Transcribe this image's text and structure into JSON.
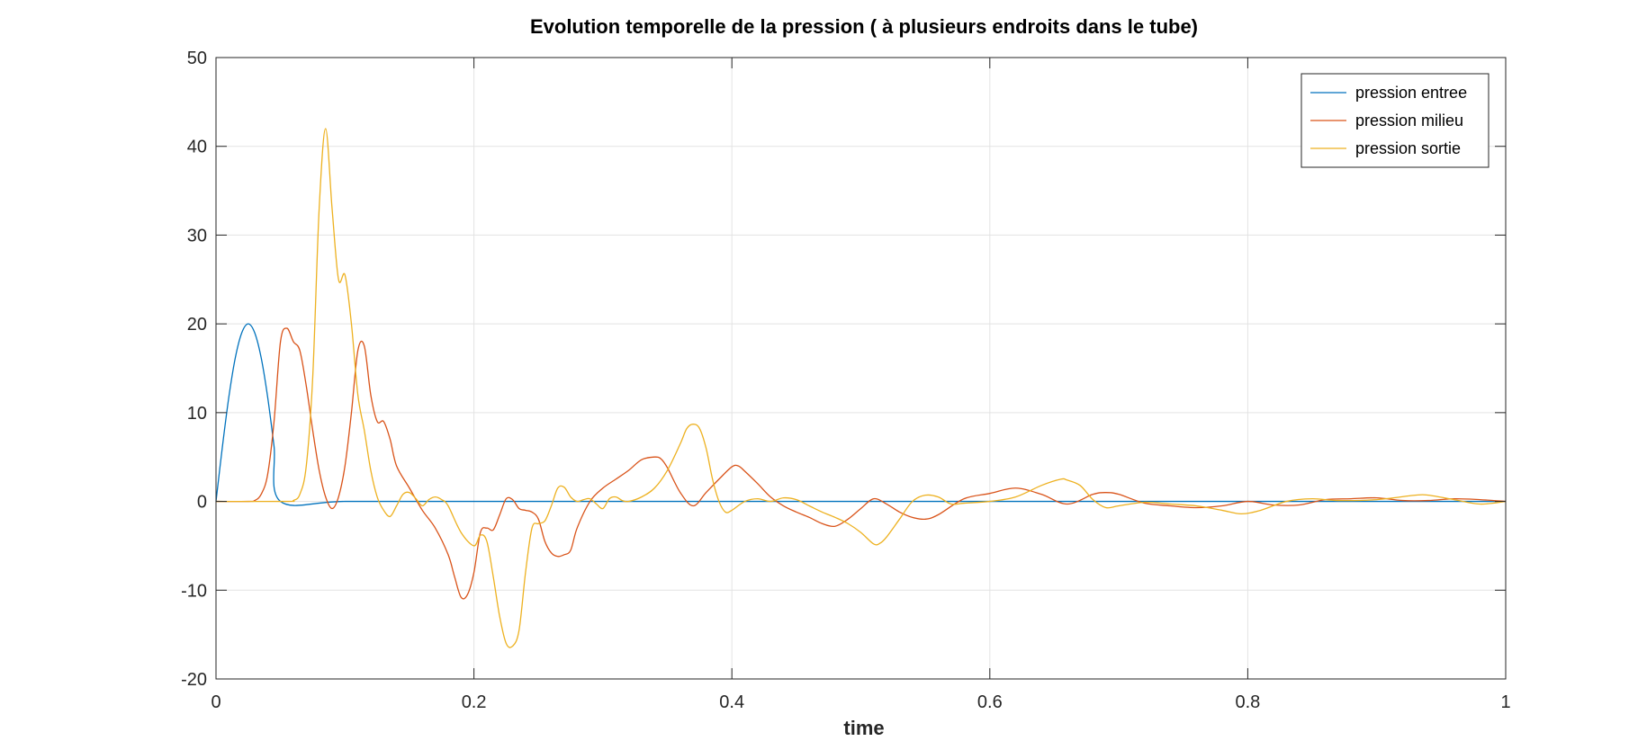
{
  "chart_data": {
    "type": "line",
    "title": "Evolution temporelle de la pression ( à plusieurs endroits dans le tube)",
    "xlabel": "time",
    "ylabel": "",
    "xlim": [
      0,
      1
    ],
    "ylim": [
      -20,
      50
    ],
    "xticks": [
      0,
      0.2,
      0.4,
      0.6,
      0.8,
      1
    ],
    "xtick_labels": [
      "0",
      "0.2",
      "0.4",
      "0.6",
      "0.8",
      "1"
    ],
    "yticks": [
      -20,
      -10,
      0,
      10,
      20,
      30,
      40,
      50
    ],
    "ytick_labels": [
      "-20",
      "-10",
      "0",
      "10",
      "20",
      "30",
      "40",
      "50"
    ],
    "grid": true,
    "legend_position": "top-right",
    "series": [
      {
        "name": "pression entree",
        "color": "#0072BD",
        "x": [
          0,
          0.005,
          0.01,
          0.015,
          0.02,
          0.025,
          0.03,
          0.035,
          0.04,
          0.045,
          0.05,
          0.1,
          0.2,
          0.4,
          0.6,
          0.8,
          1.0
        ],
        "y": [
          0,
          6.2,
          11.8,
          16.2,
          19.0,
          20.0,
          19.0,
          16.2,
          11.8,
          6.2,
          0,
          0,
          0,
          0,
          0,
          0,
          0
        ]
      },
      {
        "name": "pression milieu",
        "color": "#D95319",
        "x": [
          0,
          0.025,
          0.03,
          0.035,
          0.04,
          0.045,
          0.05,
          0.055,
          0.06,
          0.065,
          0.07,
          0.075,
          0.08,
          0.085,
          0.09,
          0.095,
          0.1,
          0.105,
          0.11,
          0.115,
          0.12,
          0.125,
          0.13,
          0.135,
          0.14,
          0.15,
          0.16,
          0.17,
          0.18,
          0.185,
          0.19,
          0.195,
          0.2,
          0.205,
          0.21,
          0.215,
          0.22,
          0.225,
          0.23,
          0.235,
          0.24,
          0.245,
          0.25,
          0.255,
          0.26,
          0.265,
          0.27,
          0.275,
          0.28,
          0.29,
          0.3,
          0.31,
          0.32,
          0.33,
          0.34,
          0.345,
          0.35,
          0.36,
          0.37,
          0.38,
          0.39,
          0.4,
          0.405,
          0.41,
          0.42,
          0.43,
          0.44,
          0.45,
          0.46,
          0.47,
          0.48,
          0.49,
          0.5,
          0.51,
          0.52,
          0.53,
          0.54,
          0.55,
          0.56,
          0.58,
          0.6,
          0.62,
          0.64,
          0.66,
          0.68,
          0.69,
          0.7,
          0.72,
          0.74,
          0.76,
          0.78,
          0.8,
          0.82,
          0.84,
          0.86,
          0.88,
          0.9,
          0.92,
          0.94,
          0.96,
          0.98,
          1.0
        ],
        "y": [
          0,
          0,
          0.1,
          0.8,
          3.0,
          9.0,
          18.0,
          19.5,
          18.0,
          17.0,
          13.0,
          8.0,
          3.5,
          0.5,
          -0.8,
          0.5,
          4.0,
          10.0,
          17.0,
          17.5,
          12.0,
          9.0,
          9.0,
          7.0,
          4.0,
          1.5,
          -1.0,
          -3.0,
          -6.0,
          -8.5,
          -10.8,
          -10.5,
          -8.0,
          -3.5,
          -3.0,
          -3.2,
          -1.5,
          0.3,
          0.2,
          -0.8,
          -1.0,
          -1.2,
          -2.0,
          -4.5,
          -5.8,
          -6.2,
          -6.0,
          -5.5,
          -3.0,
          0,
          1.5,
          2.5,
          3.5,
          4.7,
          5.0,
          4.8,
          3.8,
          1.0,
          -0.5,
          1.0,
          2.5,
          3.9,
          4.0,
          3.4,
          2.0,
          0.5,
          -0.5,
          -1.2,
          -1.8,
          -2.5,
          -2.8,
          -2.0,
          -0.8,
          0.3,
          -0.3,
          -1.2,
          -1.8,
          -2.0,
          -1.5,
          0.3,
          0.9,
          1.5,
          0.8,
          -0.3,
          0.8,
          1.0,
          0.8,
          -0.2,
          -0.5,
          -0.7,
          -0.5,
          0,
          -0.4,
          -0.4,
          0.2,
          0.3,
          0.4,
          0.1,
          0.1,
          0.3,
          0.2,
          0
        ]
      },
      {
        "name": "pression sortie",
        "color": "#EDB120",
        "x": [
          0,
          0.055,
          0.06,
          0.065,
          0.07,
          0.075,
          0.08,
          0.085,
          0.09,
          0.095,
          0.1,
          0.105,
          0.11,
          0.115,
          0.12,
          0.125,
          0.13,
          0.135,
          0.14,
          0.145,
          0.15,
          0.155,
          0.16,
          0.165,
          0.17,
          0.175,
          0.18,
          0.19,
          0.2,
          0.205,
          0.21,
          0.215,
          0.22,
          0.225,
          0.23,
          0.235,
          0.24,
          0.245,
          0.25,
          0.255,
          0.26,
          0.265,
          0.27,
          0.275,
          0.28,
          0.285,
          0.29,
          0.295,
          0.3,
          0.305,
          0.31,
          0.315,
          0.32,
          0.33,
          0.34,
          0.35,
          0.36,
          0.365,
          0.37,
          0.375,
          0.38,
          0.385,
          0.39,
          0.395,
          0.4,
          0.41,
          0.42,
          0.43,
          0.44,
          0.45,
          0.46,
          0.47,
          0.48,
          0.49,
          0.5,
          0.51,
          0.515,
          0.52,
          0.53,
          0.54,
          0.55,
          0.56,
          0.57,
          0.58,
          0.6,
          0.62,
          0.64,
          0.655,
          0.66,
          0.67,
          0.68,
          0.69,
          0.7,
          0.72,
          0.74,
          0.76,
          0.78,
          0.795,
          0.81,
          0.83,
          0.85,
          0.87,
          0.9,
          0.93,
          0.94,
          0.96,
          0.98,
          1.0
        ],
        "y": [
          0,
          0,
          0.1,
          0.8,
          4.0,
          14.0,
          33.0,
          42.0,
          33.0,
          25.0,
          25.5,
          20.0,
          12.0,
          8.0,
          3.5,
          0.5,
          -1.0,
          -1.7,
          -0.5,
          0.8,
          1.0,
          0.3,
          -0.5,
          0.2,
          0.5,
          0.2,
          -0.5,
          -3.5,
          -5.0,
          -3.8,
          -4.5,
          -8.5,
          -13.0,
          -16.0,
          -16.3,
          -14.5,
          -8.0,
          -3.0,
          -2.5,
          -2.2,
          -0.5,
          1.5,
          1.6,
          0.5,
          0,
          0.2,
          0.3,
          -0.3,
          -0.8,
          0.3,
          0.5,
          0.1,
          0,
          0.5,
          1.5,
          3.5,
          6.5,
          8.2,
          8.7,
          8.2,
          6.0,
          2.5,
          0,
          -1.2,
          -1.0,
          0,
          0.3,
          0,
          0.4,
          0.2,
          -0.5,
          -1.2,
          -1.8,
          -2.5,
          -3.5,
          -4.8,
          -4.7,
          -4.0,
          -2.0,
          0,
          0.7,
          0.5,
          -0.3,
          -0.2,
          0,
          0.5,
          1.8,
          2.5,
          2.4,
          1.8,
          0.2,
          -0.7,
          -0.5,
          -0.1,
          -0.3,
          -0.5,
          -1.0,
          -1.4,
          -1.0,
          0,
          0.3,
          0.1,
          0.2,
          0.7,
          0.7,
          0.2,
          -0.3,
          0
        ]
      }
    ]
  }
}
